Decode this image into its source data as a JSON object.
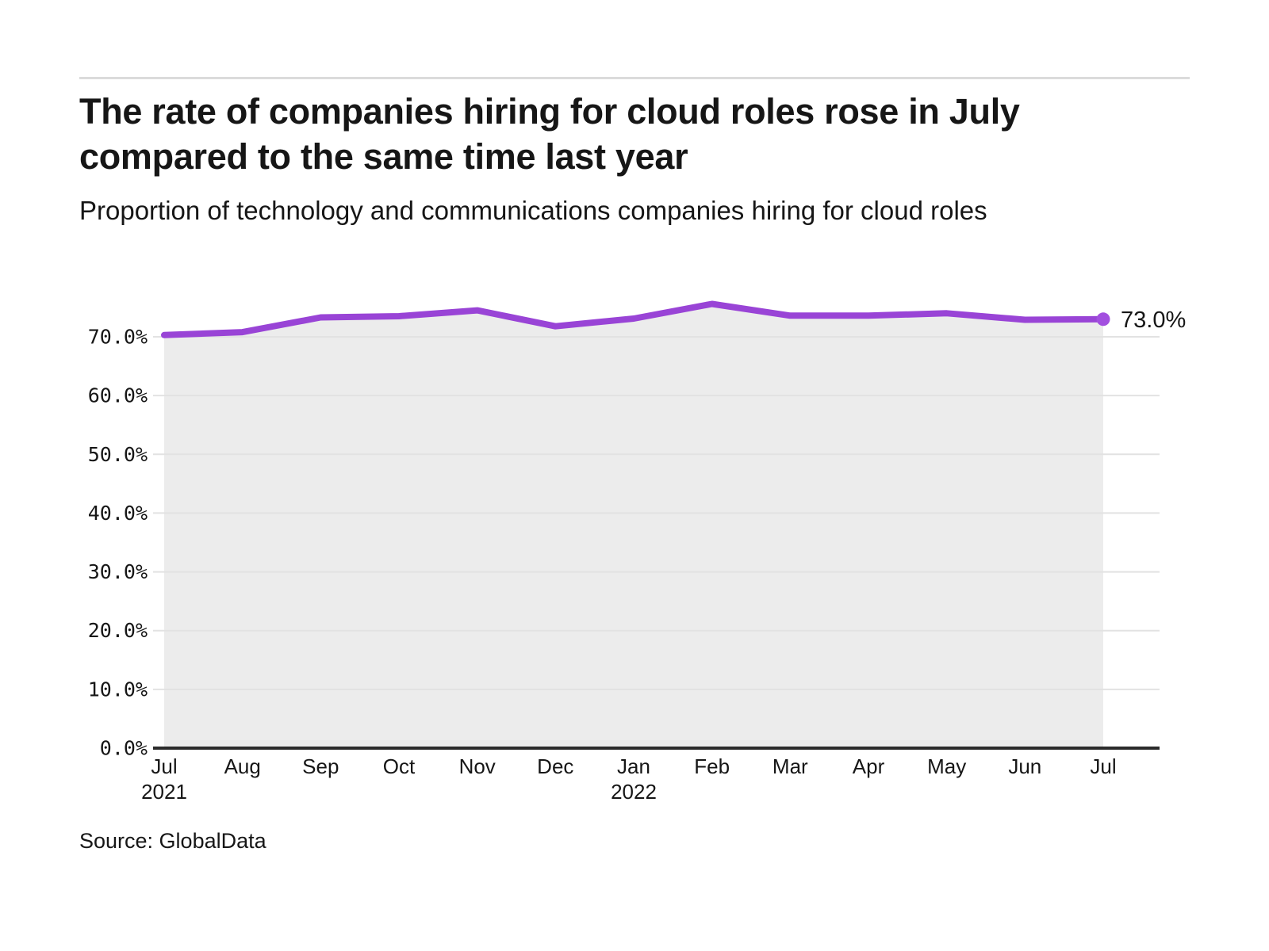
{
  "page": {
    "title": "The rate of companies hiring for cloud roles rose in July compared to the same time last year",
    "subtitle": "Proportion of technology and communications companies hiring for cloud roles",
    "source": "Source: GlobalData"
  },
  "colors": {
    "accent_line": "#9944d6",
    "end_dot": "#a24fdf",
    "area_fill": "#ececec",
    "gridline": "#e2e2e2",
    "axis": "#2b2b2b",
    "divider": "#dbdbdb",
    "text": "#161616"
  },
  "chart_data": {
    "type": "area",
    "title": "Proportion of technology and communications companies hiring for cloud roles",
    "series_name": "Proportion of companies hiring for cloud roles",
    "x_categories": [
      "Jul 2021",
      "Aug 2021",
      "Sep 2021",
      "Oct 2021",
      "Nov 2021",
      "Dec 2021",
      "Jan 2022",
      "Feb 2022",
      "Mar 2022",
      "Apr 2022",
      "May 2022",
      "Jun 2022",
      "Jul 2022"
    ],
    "values": [
      70.3,
      70.8,
      73.3,
      73.5,
      74.5,
      71.8,
      73.1,
      75.6,
      73.6,
      73.6,
      74.0,
      72.9,
      73.0
    ],
    "end_label": "73.0%",
    "ylim": [
      0,
      78
    ],
    "grid": true,
    "legend": "none",
    "yticks": [
      {
        "value": 0,
        "label": "0.0%"
      },
      {
        "value": 10,
        "label": "10.0%"
      },
      {
        "value": 20,
        "label": "20.0%"
      },
      {
        "value": 30,
        "label": "30.0%"
      },
      {
        "value": 40,
        "label": "40.0%"
      },
      {
        "value": 50,
        "label": "50.0%"
      },
      {
        "value": 60,
        "label": "60.0%"
      },
      {
        "value": 70,
        "label": "70.0%"
      }
    ],
    "xticks": [
      {
        "label": "Jul",
        "year": "2021"
      },
      {
        "label": "Aug"
      },
      {
        "label": "Sep"
      },
      {
        "label": "Oct"
      },
      {
        "label": "Nov"
      },
      {
        "label": "Dec"
      },
      {
        "label": "Jan",
        "year": "2022"
      },
      {
        "label": "Feb"
      },
      {
        "label": "Mar"
      },
      {
        "label": "Apr"
      },
      {
        "label": "May"
      },
      {
        "label": "Jun"
      },
      {
        "label": "Jul"
      }
    ]
  }
}
